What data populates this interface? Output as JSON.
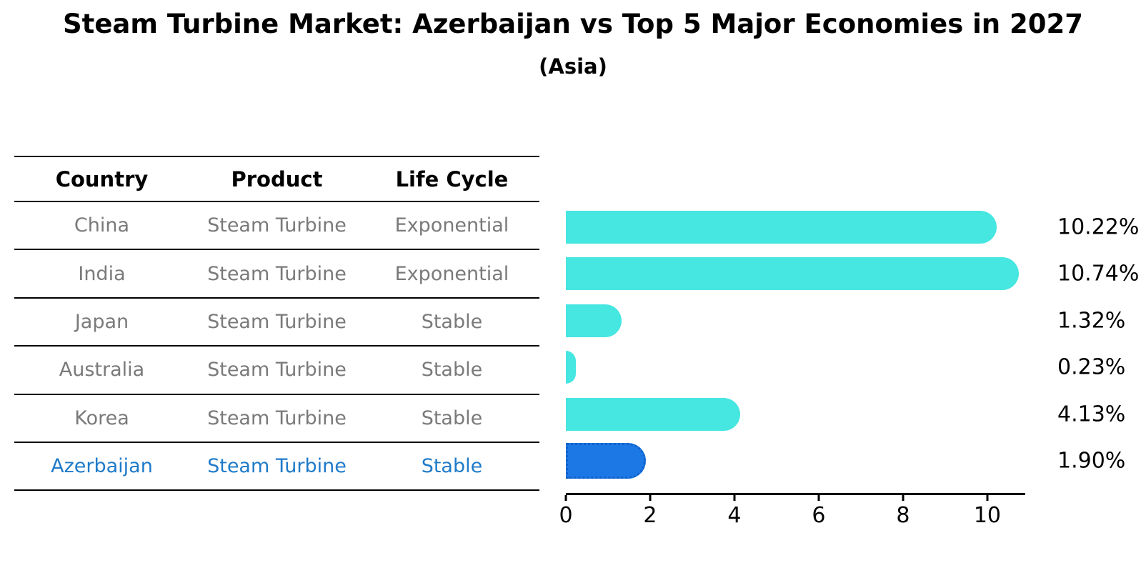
{
  "header": {
    "title": "Steam Turbine Market: Azerbaijan vs Top 5 Major Economies in 2027",
    "subtitle": "(Asia)"
  },
  "table": {
    "columns": [
      "Country",
      "Product",
      "Life Cycle"
    ],
    "rows": [
      {
        "country": "China",
        "product": "Steam Turbine",
        "life_cycle": "Exponential",
        "highlight": false
      },
      {
        "country": "India",
        "product": "Steam Turbine",
        "life_cycle": "Exponential",
        "highlight": false
      },
      {
        "country": "Japan",
        "product": "Steam Turbine",
        "life_cycle": "Stable",
        "highlight": false
      },
      {
        "country": "Australia",
        "product": "Steam Turbine",
        "life_cycle": "Stable",
        "highlight": false
      },
      {
        "country": "Korea",
        "product": "Steam Turbine",
        "life_cycle": "Stable",
        "highlight": false
      },
      {
        "country": "Azerbaijan",
        "product": "Steam Turbine",
        "life_cycle": "Stable",
        "highlight": true
      }
    ]
  },
  "chart_data": {
    "type": "bar",
    "orientation": "horizontal",
    "title": "Steam Turbine Market: Azerbaijan vs Top 5 Major Economies in 2027",
    "subtitle": "(Asia)",
    "categories": [
      "China",
      "India",
      "Japan",
      "Australia",
      "Korea",
      "Azerbaijan"
    ],
    "values": [
      10.22,
      10.74,
      1.32,
      0.23,
      4.13,
      1.9
    ],
    "value_labels": [
      "10.22%",
      "10.74%",
      "1.32%",
      "0.23%",
      "4.13%",
      "1.90%"
    ],
    "highlight_index": 5,
    "xlabel": "",
    "ylabel": "",
    "xlim": [
      0,
      10.9
    ],
    "xticks": [
      0,
      2,
      4,
      6,
      8,
      10
    ],
    "grid": false,
    "legend": "none"
  },
  "colors": {
    "bar": "#46E6E1",
    "highlight_bar": "#1C78E4",
    "highlight_bar_border": "#1160CB",
    "highlight_text": "#1F7BC9",
    "table_text": "#7A7A7A",
    "axis": "#000000"
  }
}
